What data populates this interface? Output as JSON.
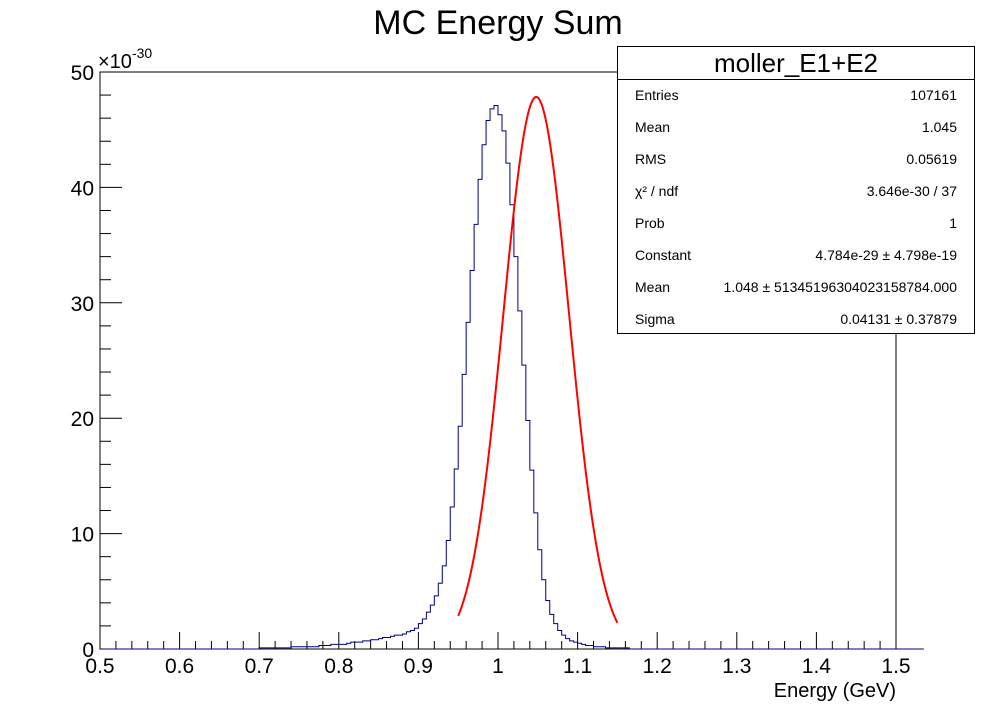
{
  "chart_data": {
    "type": "histogram",
    "title": "MC Energy Sum",
    "xlabel": "Energy (GeV)",
    "ylabel": "",
    "y_multiplier_label": "×10",
    "y_multiplier_exponent": "-30",
    "xlim": [
      0.5,
      1.5
    ],
    "ylim": [
      0,
      50
    ],
    "x_ticks": [
      "0.5",
      "0.6",
      "0.7",
      "0.8",
      "0.9",
      "1",
      "1.1",
      "1.2",
      "1.3",
      "1.4",
      "1.5"
    ],
    "y_ticks": [
      "0",
      "10",
      "20",
      "30",
      "40",
      "50"
    ],
    "grid": false,
    "histogram": {
      "name": "moller_E1+E2",
      "color": "#000080",
      "bin_edges_start": 0.5,
      "bin_width": 0.005,
      "values": [
        0,
        0,
        0,
        0,
        0,
        0,
        0,
        0,
        0,
        0,
        0,
        0,
        0,
        0,
        0,
        0,
        0,
        0,
        0,
        0,
        0,
        0,
        0,
        0,
        0,
        0,
        0,
        0,
        0,
        0,
        0,
        0,
        0,
        0,
        0,
        0,
        0,
        0,
        0,
        0,
        0.1,
        0.1,
        0.1,
        0.1,
        0.1,
        0.1,
        0.1,
        0.1,
        0.2,
        0.2,
        0.2,
        0.2,
        0.2,
        0.2,
        0.2,
        0.3,
        0.3,
        0.3,
        0.4,
        0.4,
        0.4,
        0.4,
        0.5,
        0.6,
        0.6,
        0.6,
        0.7,
        0.7,
        0.8,
        0.8,
        0.9,
        1.0,
        1.0,
        1.1,
        1.2,
        1.2,
        1.3,
        1.5,
        1.6,
        1.8,
        2.2,
        2.6,
        3.2,
        3.8,
        4.6,
        5.7,
        7.2,
        9.4,
        12.3,
        15.6,
        19.3,
        23.8,
        28.3,
        32.8,
        36.8,
        40.7,
        43.7,
        45.8,
        46.8,
        47.1,
        46.3,
        44.9,
        42.1,
        38.5,
        34.0,
        29.3,
        24.6,
        19.8,
        15.5,
        11.8,
        8.6,
        6.0,
        4.2,
        3.0,
        2.2,
        1.6,
        1.2,
        0.9,
        0.7,
        0.6,
        0.5,
        0.4,
        0.3,
        0.3,
        0.2,
        0.2,
        0.2,
        0.1,
        0.1,
        0.1,
        0.1,
        0.1,
        0.1,
        0,
        0,
        0,
        0,
        0,
        0,
        0,
        0,
        0,
        0,
        0,
        0,
        0,
        0,
        0,
        0,
        0,
        0,
        0,
        0,
        0,
        0,
        0,
        0,
        0,
        0,
        0,
        0,
        0,
        0,
        0,
        0,
        0,
        0,
        0,
        0,
        0,
        0,
        0,
        0,
        0,
        0,
        0,
        0,
        0,
        0,
        0,
        0,
        0,
        0,
        0,
        0,
        0,
        0,
        0,
        0,
        0,
        0,
        0,
        0,
        0,
        0,
        0,
        0,
        0,
        0,
        0,
        0,
        0,
        0,
        0,
        0,
        0,
        0
      ]
    },
    "fit": {
      "function": "gaus",
      "color": "#ff0000",
      "x_range": [
        0.95,
        1.15
      ],
      "constant": 47.84,
      "mean": 1.048,
      "sigma": 0.04131
    },
    "legend_placement": "top-right"
  },
  "stats_box": {
    "name": "moller_E1+E2",
    "rows": [
      {
        "label": "Entries",
        "value": "107161"
      },
      {
        "label": "Mean",
        "value": "1.045"
      },
      {
        "label": "RMS",
        "value": "0.05619"
      },
      {
        "label": "χ² / ndf",
        "value": "3.646e-30 / 37"
      },
      {
        "label": "Prob",
        "value": "1"
      },
      {
        "label": "Constant",
        "value": "4.784e-29 ± 4.798e-19"
      },
      {
        "label": "Mean",
        "value": "1.048 ± 5134519630402315878​4.000"
      },
      {
        "label": "Sigma",
        "value": "0.04131 ± 0.37879"
      }
    ]
  }
}
